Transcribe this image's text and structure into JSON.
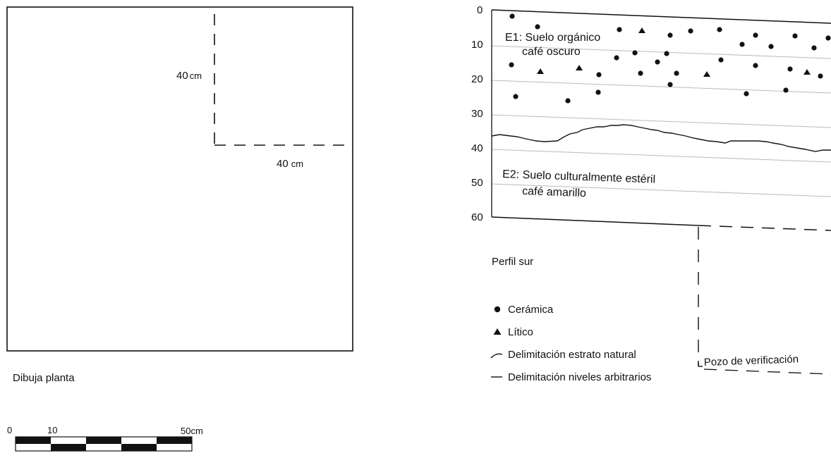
{
  "plan": {
    "dim_vertical_value": "40",
    "dim_vertical_unit": "cm",
    "dim_horizontal_value": "40",
    "dim_horizontal_unit": "cm",
    "caption": "Dibuja planta"
  },
  "scale_bar": {
    "tick_0": "0",
    "tick_10": "10",
    "tick_end": "50cm"
  },
  "profile": {
    "depth_ticks": [
      "0",
      "10",
      "20",
      "30",
      "40",
      "50",
      "60"
    ],
    "stratum_e1_line1": "E1: Suelo orgánico",
    "stratum_e1_line2": "café oscuro",
    "stratum_e2_line1": "E2: Suelo culturalmente estéril",
    "stratum_e2_line2": "café amarillo",
    "caption": "Perfil sur",
    "test_pit_label": "Pozo de verificación"
  },
  "legend": {
    "items": [
      {
        "symbol": "circle-icon",
        "label": "Cerámica"
      },
      {
        "symbol": "triangle-icon",
        "label": "Lítico"
      },
      {
        "symbol": "curve-line-icon",
        "label": "Delimitación estrato natural"
      },
      {
        "symbol": "straight-line-icon",
        "label": "Delimitación niveles arbitrarios"
      }
    ]
  },
  "colors": {
    "ink": "#111111",
    "grid_line": "#bbbbbb"
  }
}
